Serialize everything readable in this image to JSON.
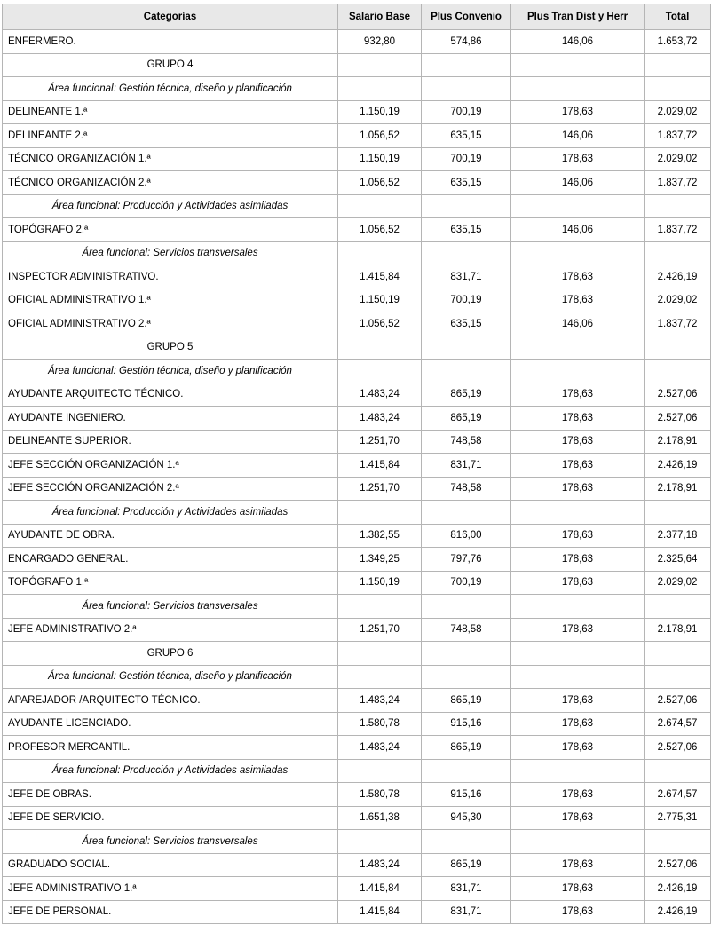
{
  "table": {
    "headers": [
      "Categorías",
      "Salario Base",
      "Plus Convenio",
      "Plus Tran Dist y Herr",
      "Total"
    ],
    "rows": [
      {
        "type": "data",
        "category": "ENFERMERO.",
        "salario_base": "932,80",
        "plus_convenio": "574,86",
        "plus_tran": "146,06",
        "total": "1.653,72"
      },
      {
        "type": "group",
        "label": "GRUPO 4"
      },
      {
        "type": "area",
        "label": "Área funcional: Gestión técnica, diseño y planificación"
      },
      {
        "type": "data",
        "category": "DELINEANTE 1.ª",
        "salario_base": "1.150,19",
        "plus_convenio": "700,19",
        "plus_tran": "178,63",
        "total": "2.029,02"
      },
      {
        "type": "data",
        "category": "DELINEANTE 2.ª",
        "salario_base": "1.056,52",
        "plus_convenio": "635,15",
        "plus_tran": "146,06",
        "total": "1.837,72"
      },
      {
        "type": "data",
        "category": "TÉCNICO ORGANIZACIÓN 1.ª",
        "salario_base": "1.150,19",
        "plus_convenio": "700,19",
        "plus_tran": "178,63",
        "total": "2.029,02"
      },
      {
        "type": "data",
        "category": "TÉCNICO ORGANIZACIÓN 2.ª",
        "salario_base": "1.056,52",
        "plus_convenio": "635,15",
        "plus_tran": "146,06",
        "total": "1.837,72"
      },
      {
        "type": "area",
        "label": "Área funcional: Producción y Actividades asimiladas"
      },
      {
        "type": "data",
        "category": "TOPÓGRAFO 2.ª",
        "salario_base": "1.056,52",
        "plus_convenio": "635,15",
        "plus_tran": "146,06",
        "total": "1.837,72"
      },
      {
        "type": "area",
        "label": "Área funcional: Servicios transversales"
      },
      {
        "type": "data",
        "category": "INSPECTOR ADMINISTRATIVO.",
        "salario_base": "1.415,84",
        "plus_convenio": "831,71",
        "plus_tran": "178,63",
        "total": "2.426,19"
      },
      {
        "type": "data",
        "category": "OFICIAL ADMINISTRATIVO 1.ª",
        "salario_base": "1.150,19",
        "plus_convenio": "700,19",
        "plus_tran": "178,63",
        "total": "2.029,02"
      },
      {
        "type": "data",
        "category": "OFICIAL ADMINISTRATIVO 2.ª",
        "salario_base": "1.056,52",
        "plus_convenio": "635,15",
        "plus_tran": "146,06",
        "total": "1.837,72"
      },
      {
        "type": "group",
        "label": "GRUPO 5"
      },
      {
        "type": "area",
        "label": "Área funcional: Gestión técnica, diseño y planificación"
      },
      {
        "type": "data",
        "category": "AYUDANTE ARQUITECTO TÉCNICO.",
        "salario_base": "1.483,24",
        "plus_convenio": "865,19",
        "plus_tran": "178,63",
        "total": "2.527,06"
      },
      {
        "type": "data",
        "category": "AYUDANTE INGENIERO.",
        "salario_base": "1.483,24",
        "plus_convenio": "865,19",
        "plus_tran": "178,63",
        "total": "2.527,06"
      },
      {
        "type": "data",
        "category": "DELINEANTE SUPERIOR.",
        "salario_base": "1.251,70",
        "plus_convenio": "748,58",
        "plus_tran": "178,63",
        "total": "2.178,91"
      },
      {
        "type": "data",
        "category": "JEFE SECCIÓN ORGANIZACIÓN 1.ª",
        "salario_base": "1.415,84",
        "plus_convenio": "831,71",
        "plus_tran": "178,63",
        "total": "2.426,19"
      },
      {
        "type": "data",
        "category": "JEFE SECCIÓN ORGANIZACIÓN 2.ª",
        "salario_base": "1.251,70",
        "plus_convenio": "748,58",
        "plus_tran": "178,63",
        "total": "2.178,91"
      },
      {
        "type": "area",
        "label": "Área funcional: Producción y Actividades asimiladas"
      },
      {
        "type": "data",
        "category": "AYUDANTE DE OBRA.",
        "salario_base": "1.382,55",
        "plus_convenio": "816,00",
        "plus_tran": "178,63",
        "total": "2.377,18"
      },
      {
        "type": "data",
        "category": "ENCARGADO GENERAL.",
        "salario_base": "1.349,25",
        "plus_convenio": "797,76",
        "plus_tran": "178,63",
        "total": "2.325,64"
      },
      {
        "type": "data",
        "category": "TOPÓGRAFO 1.ª",
        "salario_base": "1.150,19",
        "plus_convenio": "700,19",
        "plus_tran": "178,63",
        "total": "2.029,02"
      },
      {
        "type": "area",
        "label": "Área funcional: Servicios transversales"
      },
      {
        "type": "data",
        "category": "JEFE ADMINISTRATIVO 2.ª",
        "salario_base": "1.251,70",
        "plus_convenio": "748,58",
        "plus_tran": "178,63",
        "total": "2.178,91"
      },
      {
        "type": "group",
        "label": "GRUPO 6"
      },
      {
        "type": "area",
        "label": "Área funcional: Gestión técnica, diseño y planificación"
      },
      {
        "type": "data",
        "category": "APAREJADOR /ARQUITECTO TÉCNICO.",
        "salario_base": "1.483,24",
        "plus_convenio": "865,19",
        "plus_tran": "178,63",
        "total": "2.527,06"
      },
      {
        "type": "data",
        "category": "AYUDANTE LICENCIADO.",
        "salario_base": "1.580,78",
        "plus_convenio": "915,16",
        "plus_tran": "178,63",
        "total": "2.674,57"
      },
      {
        "type": "data",
        "category": "PROFESOR MERCANTIL.",
        "salario_base": "1.483,24",
        "plus_convenio": "865,19",
        "plus_tran": "178,63",
        "total": "2.527,06"
      },
      {
        "type": "area",
        "label": "Área funcional: Producción y Actividades asimiladas"
      },
      {
        "type": "data",
        "category": "JEFE DE OBRAS.",
        "salario_base": "1.580,78",
        "plus_convenio": "915,16",
        "plus_tran": "178,63",
        "total": "2.674,57"
      },
      {
        "type": "data",
        "category": "JEFE DE SERVICIO.",
        "salario_base": "1.651,38",
        "plus_convenio": "945,30",
        "plus_tran": "178,63",
        "total": "2.775,31"
      },
      {
        "type": "area",
        "label": "Área funcional: Servicios transversales"
      },
      {
        "type": "data",
        "category": "GRADUADO SOCIAL.",
        "salario_base": "1.483,24",
        "plus_convenio": "865,19",
        "plus_tran": "178,63",
        "total": "2.527,06"
      },
      {
        "type": "data",
        "category": "JEFE ADMINISTRATIVO 1.ª",
        "salario_base": "1.415,84",
        "plus_convenio": "831,71",
        "plus_tran": "178,63",
        "total": "2.426,19"
      },
      {
        "type": "data",
        "category": "JEFE DE PERSONAL.",
        "salario_base": "1.415,84",
        "plus_convenio": "831,71",
        "plus_tran": "178,63",
        "total": "2.426,19"
      }
    ]
  },
  "colors": {
    "header_bg": "#e8e8e8",
    "border": "#b5b5b5",
    "text": "#000000"
  }
}
